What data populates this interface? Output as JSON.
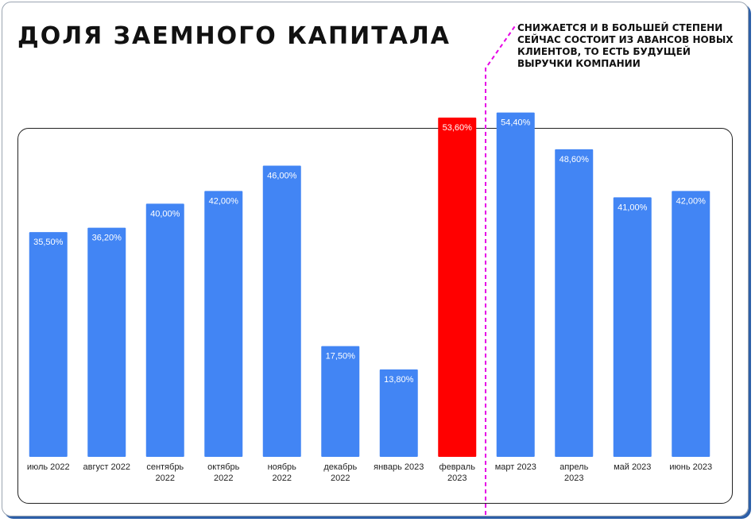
{
  "title": "ДОЛЯ ЗАЕМНОГО КАПИТАЛА",
  "note": "СНИЖАЕТСЯ И В БОЛЬШЕЙ СТЕПЕНИ СЕЙЧАС СОСТОИТ ИЗ АВАНСОВ НОВЫХ КЛИЕНТОВ, ТО ЕСТЬ БУДУЩЕЙ ВЫРУЧКИ КОМПАНИИ",
  "colors": {
    "bar": "#4285f4",
    "highlight": "#ff0000",
    "divider": "#e600e6",
    "label_text": "#ffffff",
    "axis_text": "#222222"
  },
  "chart_data": {
    "type": "bar",
    "categories": [
      [
        "июль 2022"
      ],
      [
        "август 2022"
      ],
      [
        "сентябрь",
        "2022"
      ],
      [
        "октябрь",
        "2022"
      ],
      [
        "ноябрь",
        "2022"
      ],
      [
        "декабрь",
        "2022"
      ],
      [
        "январь 2023"
      ],
      [
        "февраль",
        "2023"
      ],
      [
        "март 2023"
      ],
      [
        "апрель",
        "2023"
      ],
      [
        "май 2023"
      ],
      [
        "июнь 2023"
      ]
    ],
    "values": [
      35.5,
      36.2,
      40.0,
      42.0,
      46.0,
      17.5,
      13.8,
      53.6,
      54.4,
      48.6,
      41.0,
      42.0
    ],
    "labels": [
      "35,50%",
      "36,20%",
      "40,00%",
      "42,00%",
      "46,00%",
      "17,50%",
      "13,80%",
      "53,60%",
      "54,40%",
      "48,60%",
      "41,00%",
      "42,00%"
    ],
    "highlight_index": 7,
    "ylim": [
      0,
      60
    ],
    "grid": false,
    "title": "",
    "xlabel": "",
    "ylabel": ""
  }
}
